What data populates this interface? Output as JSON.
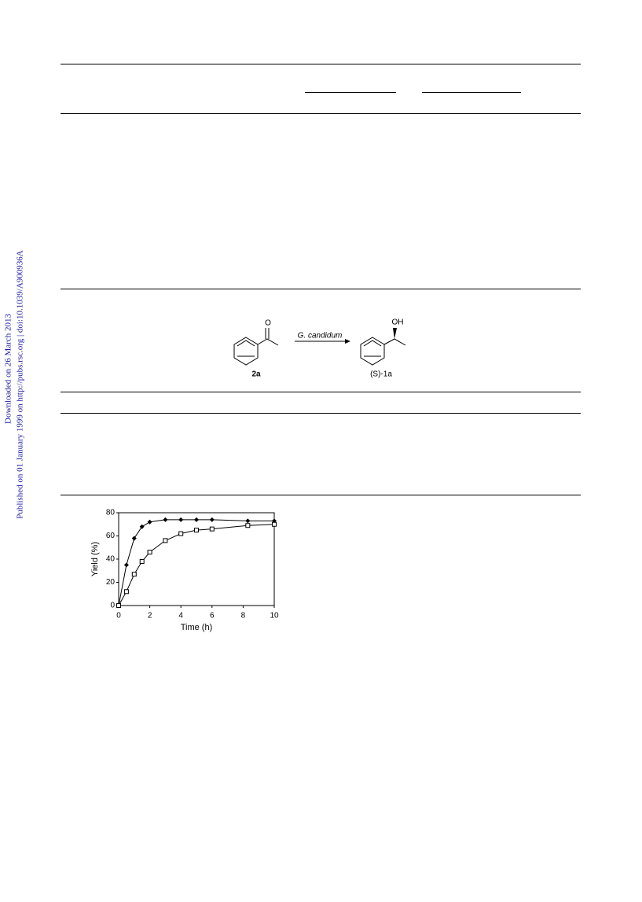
{
  "watermark": [
    "Downloaded on 26 March 2013",
    "Published on 01 January 1999 on http://pubs.rsc.org | doi:10.1039/A900936A"
  ],
  "scheme": {
    "carbonyl": "O",
    "hydroxyl": "OH",
    "reagent": "G. candidum",
    "substrate": "2a",
    "product": "(S)-1a"
  },
  "chart_data": {
    "type": "line",
    "xlabel": "Time (h)",
    "ylabel": "Yield (%)",
    "xlim": [
      0,
      10
    ],
    "ylim": [
      0,
      80
    ],
    "xticks": [
      0,
      2,
      4,
      6,
      8,
      10
    ],
    "yticks": [
      0,
      20,
      40,
      60,
      80
    ],
    "series": [
      {
        "color": "#000000",
        "marker": "diamond",
        "x": [
          0,
          0.5,
          1,
          1.5,
          2,
          3,
          4,
          5,
          6,
          8.3,
          10
        ],
        "values": [
          0,
          35,
          58,
          68,
          72,
          74,
          74,
          74,
          74,
          73,
          73
        ]
      },
      {
        "color": "#000000",
        "marker": "square",
        "x": [
          0,
          0.5,
          1,
          1.5,
          2,
          3,
          4,
          5,
          6,
          8.3,
          10
        ],
        "values": [
          0,
          12,
          27,
          38,
          46,
          56,
          62,
          65,
          66,
          69,
          70
        ]
      }
    ]
  }
}
